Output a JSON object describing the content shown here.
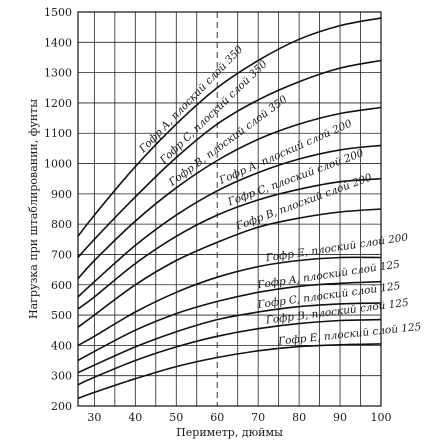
{
  "chart_data": {
    "type": "line",
    "xlabel": "Периметр, дюймы",
    "ylabel": "Нагрузка при штаблировании, фунты",
    "xlim": [
      26,
      100
    ],
    "ylim": [
      200,
      1500
    ],
    "xticks": [
      30,
      40,
      50,
      60,
      70,
      80,
      90,
      100
    ],
    "yticks": [
      200,
      300,
      400,
      500,
      600,
      700,
      800,
      900,
      1000,
      1100,
      1200,
      1300,
      1400,
      1500
    ],
    "grid": true,
    "reference_line_x": 60,
    "x": [
      26,
      30,
      40,
      50,
      60,
      70,
      80,
      90,
      100
    ],
    "series": [
      {
        "name": "Гофр A, плоский слой 350",
        "values": [
          760,
          830,
          990,
          1130,
          1250,
          1340,
          1410,
          1455,
          1480
        ]
      },
      {
        "name": "Гофр C, плоский слой 350",
        "values": [
          690,
          750,
          890,
          1020,
          1130,
          1210,
          1270,
          1315,
          1340
        ]
      },
      {
        "name": "Гофр B, плоский слой 350",
        "values": [
          620,
          680,
          810,
          920,
          1010,
          1080,
          1130,
          1165,
          1185
        ]
      },
      {
        "name": "Гофр A, плоский слой 200",
        "values": [
          560,
          610,
          730,
          830,
          910,
          970,
          1015,
          1045,
          1060
        ]
      },
      {
        "name": "Гофр C, плоский слой 200",
        "values": [
          520,
          560,
          670,
          760,
          830,
          880,
          915,
          940,
          950
        ]
      },
      {
        "name": "Гофр B, плоский слой 200",
        "values": [
          460,
          500,
          600,
          680,
          740,
          790,
          820,
          840,
          850
        ]
      },
      {
        "name": "Гофр E, плоский слой 200",
        "values": [
          400,
          430,
          510,
          575,
          625,
          660,
          680,
          690,
          690
        ]
      },
      {
        "name": "Гофр A, плоский слой 125",
        "values": [
          350,
          380,
          450,
          505,
          545,
          575,
          595,
          605,
          610
        ]
      },
      {
        "name": "Гофр C, плоский слой 125",
        "values": [
          310,
          335,
          395,
          445,
          485,
          510,
          528,
          537,
          540
        ]
      },
      {
        "name": "Гофр B, плоский слой 125",
        "values": [
          270,
          295,
          350,
          395,
          430,
          455,
          472,
          482,
          485
        ]
      },
      {
        "name": "Гофр E, плоский слой 125",
        "values": [
          225,
          245,
          290,
          330,
          360,
          382,
          396,
          402,
          405
        ]
      }
    ]
  }
}
